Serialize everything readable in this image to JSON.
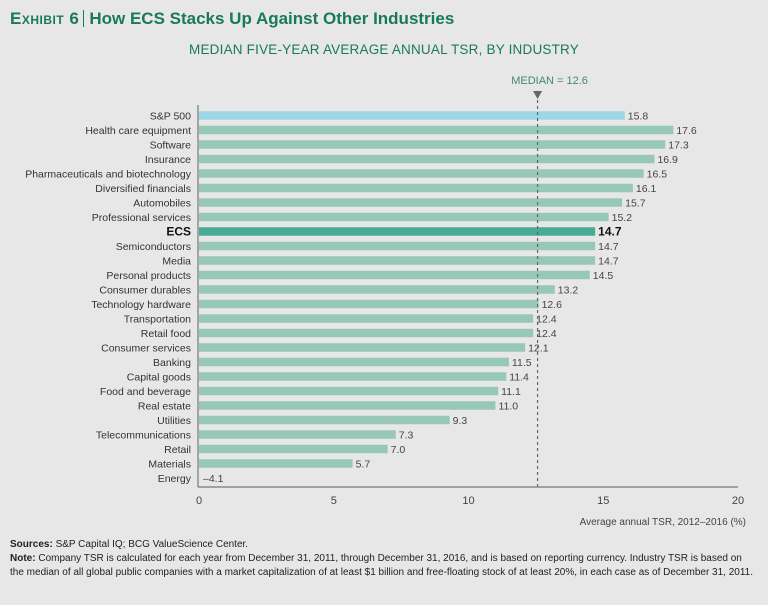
{
  "header": {
    "exhibit_label": "Exhibit 6",
    "title": "How ECS Stacks Up Against Other Industries"
  },
  "chart_data": {
    "type": "bar",
    "orientation": "horizontal",
    "title": "MEDIAN FIVE-YEAR AVERAGE ANNUAL TSR, BY INDUSTRY",
    "xlabel": "Average annual TSR, 2012–2016 (%)",
    "ylabel": "",
    "xlim": [
      0,
      20
    ],
    "xticks": [
      0,
      5,
      10,
      15,
      20
    ],
    "grid": false,
    "median": {
      "label": "MEDIAN = 12.6",
      "value": 12.6
    },
    "categories": [
      "S&P 500",
      "Health care equipment",
      "Software",
      "Insurance",
      "Pharmaceuticals and biotechnology",
      "Diversified financials",
      "Automobiles",
      "Professional services",
      "ECS",
      "Semiconductors",
      "Media",
      "Personal products",
      "Consumer durables",
      "Technology hardware",
      "Transportation",
      "Retail food",
      "Consumer services",
      "Banking",
      "Capital goods",
      "Food and beverage",
      "Real estate",
      "Utilities",
      "Telecommunications",
      "Retail",
      "Materials",
      "Energy"
    ],
    "values": [
      15.8,
      17.6,
      17.3,
      16.9,
      16.5,
      16.1,
      15.7,
      15.2,
      14.7,
      14.7,
      14.7,
      14.5,
      13.2,
      12.6,
      12.4,
      12.4,
      12.1,
      11.5,
      11.4,
      11.1,
      11.0,
      9.3,
      7.3,
      7.0,
      5.7,
      -4.1
    ],
    "value_labels": [
      "15.8",
      "17.6",
      "17.3",
      "16.9",
      "16.5",
      "16.1",
      "15.7",
      "15.2",
      "14.7",
      "14.7",
      "14.7",
      "14.5",
      "13.2",
      "12.6",
      "12.4",
      "12.4",
      "12.1",
      "11.5",
      "11.4",
      "11.1",
      "11.0",
      "9.3",
      "7.3",
      "7.0",
      "5.7",
      "–4.1"
    ],
    "highlight": {
      "S&P 500": "benchmark",
      "ECS": "focus"
    },
    "colors": {
      "default": "#97c7b8",
      "benchmark": "#9bd7e6",
      "focus": "#48ab93",
      "median": "#666666",
      "axis": "#777777"
    }
  },
  "footer": {
    "sources_label": "Sources:",
    "sources_text": "S&P Capital IQ; BCG ValueScience Center.",
    "note_label": "Note:",
    "note_text": "Company TSR is calculated for each year from December 31, 2011, through December 31, 2016, and is based on reporting currency. Industry TSR is based on the median of all global public companies with a market capitalization of at least $1 billion and free-floating stock of at least 20%, in each case as of December 31, 2011."
  }
}
